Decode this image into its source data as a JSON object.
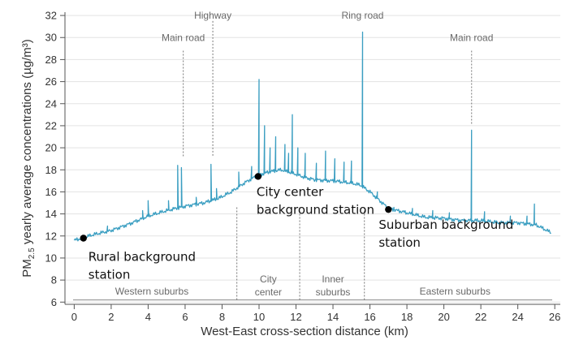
{
  "chart_data": {
    "type": "line",
    "title": "",
    "xlabel": "West-East cross-section distance (km)",
    "ylabel": {
      "prefix": "PM",
      "subscript": "2.5",
      "suffix": " yearly average concentrations (µg/m³)"
    },
    "xlim": [
      -0.5,
      26.3
    ],
    "ylim": [
      5.8,
      32.3
    ],
    "x_ticks": [
      0,
      2,
      4,
      6,
      8,
      10,
      12,
      14,
      16,
      18,
      20,
      22,
      24,
      26
    ],
    "y_ticks": [
      6,
      8,
      10,
      12,
      14,
      16,
      18,
      20,
      22,
      24,
      26,
      28,
      30,
      32
    ],
    "grid": true,
    "line_color": "#3a9ec1",
    "series": [
      {
        "name": "PM2.5 concentration",
        "baseline": [
          [
            0.0,
            11.6
          ],
          [
            1.0,
            12.1
          ],
          [
            2.0,
            12.5
          ],
          [
            3.0,
            13.1
          ],
          [
            4.0,
            13.8
          ],
          [
            5.0,
            14.3
          ],
          [
            6.0,
            14.7
          ],
          [
            7.0,
            15.0
          ],
          [
            7.8,
            15.4
          ],
          [
            8.5,
            16.0
          ],
          [
            9.2,
            16.8
          ],
          [
            9.8,
            17.4
          ],
          [
            10.5,
            17.8
          ],
          [
            11.2,
            18.0
          ],
          [
            12.0,
            17.6
          ],
          [
            12.5,
            17.3
          ],
          [
            13.0,
            17.1
          ],
          [
            14.0,
            17.0
          ],
          [
            15.0,
            16.8
          ],
          [
            15.5,
            16.6
          ],
          [
            16.0,
            16.0
          ],
          [
            17.0,
            14.5
          ],
          [
            18.0,
            14.1
          ],
          [
            19.0,
            13.7
          ],
          [
            20.0,
            13.6
          ],
          [
            21.0,
            13.4
          ],
          [
            22.0,
            13.4
          ],
          [
            23.0,
            13.2
          ],
          [
            24.0,
            13.2
          ],
          [
            25.0,
            13.0
          ],
          [
            25.8,
            12.3
          ]
        ],
        "peaks": [
          [
            1.8,
            12.9
          ],
          [
            3.7,
            14.3
          ],
          [
            4.0,
            15.2
          ],
          [
            5.1,
            15.2
          ],
          [
            5.6,
            18.4
          ],
          [
            5.8,
            18.2
          ],
          [
            6.6,
            15.5
          ],
          [
            7.4,
            18.5
          ],
          [
            7.7,
            16.3
          ],
          [
            8.9,
            17.8
          ],
          [
            9.6,
            18.3
          ],
          [
            10.0,
            26.2
          ],
          [
            10.3,
            22.0
          ],
          [
            10.6,
            20.0
          ],
          [
            10.9,
            21.0
          ],
          [
            11.4,
            20.3
          ],
          [
            11.6,
            19.5
          ],
          [
            11.8,
            23.0
          ],
          [
            12.1,
            20.0
          ],
          [
            12.5,
            19.5
          ],
          [
            13.1,
            18.6
          ],
          [
            13.6,
            19.7
          ],
          [
            14.1,
            19.0
          ],
          [
            14.6,
            18.7
          ],
          [
            15.0,
            18.8
          ],
          [
            15.6,
            30.5
          ],
          [
            16.4,
            16.0
          ],
          [
            17.3,
            14.6
          ],
          [
            18.3,
            14.5
          ],
          [
            19.4,
            14.3
          ],
          [
            20.3,
            14.1
          ],
          [
            21.5,
            21.6
          ],
          [
            22.2,
            14.2
          ],
          [
            23.6,
            13.8
          ],
          [
            24.5,
            13.8
          ],
          [
            24.9,
            14.9
          ]
        ]
      }
    ],
    "top_annotations": [
      {
        "label": "Main road",
        "x": 5.9,
        "y_from": 19.2,
        "y_to": 28.8
      },
      {
        "label": "Highway",
        "x": 7.5,
        "y_from": 19.2,
        "y_to": 31.5
      },
      {
        "label": "Ring road",
        "x": 15.6,
        "y_from": null,
        "y_to": null
      },
      {
        "label": "Main road",
        "x": 21.5,
        "y_from": 22.1,
        "y_to": 28.8
      }
    ],
    "zone_dividers": [
      8.8,
      12.2,
      15.7
    ],
    "zones": [
      {
        "label": [
          "Western suburbs"
        ],
        "x": 4.2
      },
      {
        "label": [
          "City",
          "center"
        ],
        "x": 10.5
      },
      {
        "label": [
          "Inner",
          "suburbs"
        ],
        "x": 14.0
      },
      {
        "label": [
          "Eastern suburbs"
        ],
        "x": 20.6
      }
    ],
    "stations": [
      {
        "label": [
          "Rural background",
          "station"
        ],
        "x": 0.5,
        "y": 11.8
      },
      {
        "label": [
          "City center",
          "background station"
        ],
        "x": 9.95,
        "y": 17.4
      },
      {
        "label": [
          "Suburban background",
          "station"
        ],
        "x": 17.0,
        "y": 14.4
      }
    ]
  }
}
